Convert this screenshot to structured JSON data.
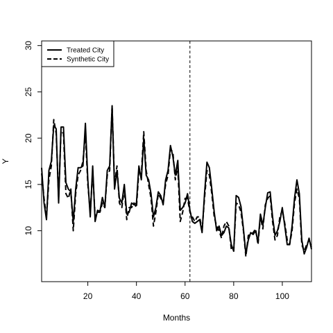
{
  "chart_data": {
    "type": "line",
    "xlabel": "Months",
    "ylabel": "Y",
    "xlim": [
      1,
      112
    ],
    "ylim": [
      4.5,
      30.5
    ],
    "xticks": [
      20,
      40,
      60,
      80,
      100
    ],
    "yticks": [
      10,
      15,
      20,
      25,
      30
    ],
    "intervention_x": 62,
    "legend_position": "top-left",
    "grid": false,
    "series": [
      {
        "name": "Treated City",
        "line_style": "solid",
        "color": "#000000",
        "x": [
          1,
          2,
          3,
          4,
          5,
          6,
          7,
          8,
          9,
          10,
          11,
          12,
          13,
          14,
          15,
          16,
          17,
          18,
          19,
          20,
          21,
          22,
          23,
          24,
          25,
          26,
          27,
          28,
          29,
          30,
          31,
          32,
          33,
          34,
          35,
          36,
          37,
          38,
          39,
          40,
          41,
          42,
          43,
          44,
          45,
          46,
          47,
          48,
          49,
          50,
          51,
          52,
          53,
          54,
          55,
          56,
          57,
          58,
          59,
          60,
          61,
          62,
          63,
          64,
          65,
          66,
          67,
          68,
          69,
          70,
          71,
          72,
          73,
          74,
          75,
          76,
          77,
          78,
          79,
          80,
          81,
          82,
          83,
          84,
          85,
          86,
          87,
          88,
          89,
          90,
          91,
          92,
          93,
          94,
          95,
          96,
          97,
          98,
          99,
          100,
          101,
          102,
          103,
          104,
          105,
          106,
          107,
          108,
          109,
          110,
          111,
          112
        ],
        "values": [
          16.8,
          13,
          11.2,
          16.5,
          17.5,
          21.4,
          21,
          13,
          21.2,
          21.2,
          15.2,
          14.5,
          14.2,
          11,
          14.5,
          16.8,
          16.8,
          17,
          21.6,
          15.5,
          11.5,
          17,
          11,
          12.2,
          12.1,
          13.6,
          12.5,
          16.5,
          17,
          23.5,
          14.5,
          16.5,
          13.5,
          13,
          15,
          11.8,
          12,
          13,
          12.8,
          13,
          17,
          15.5,
          20,
          16,
          15.5,
          14,
          11.5,
          12.5,
          14.2,
          13.8,
          12.8,
          15.5,
          16.5,
          19.2,
          18,
          16,
          17.6,
          12.2,
          12.5,
          13,
          14,
          12.2,
          11,
          10.8,
          11,
          11.2,
          9.8,
          14,
          17.4,
          16.8,
          14.5,
          12,
          10,
          10.5,
          9.5,
          9.8,
          10.5,
          10.3,
          8.5,
          7.8,
          13.8,
          13.6,
          12.6,
          10.2,
          7.5,
          9,
          9.8,
          9.6,
          10,
          8.8,
          11.8,
          10.6,
          12.5,
          14.1,
          14.2,
          11.5,
          9.5,
          10,
          11,
          12.5,
          10.5,
          8.5,
          8.5,
          10.5,
          13.5,
          15.5,
          14,
          9,
          7.5,
          8.2,
          9.2,
          8
        ]
      },
      {
        "name": "Synthetic City",
        "line_style": "dashed",
        "color": "#000000",
        "x": [
          1,
          2,
          3,
          4,
          5,
          6,
          7,
          8,
          9,
          10,
          11,
          12,
          13,
          14,
          15,
          16,
          17,
          18,
          19,
          20,
          21,
          22,
          23,
          24,
          25,
          26,
          27,
          28,
          29,
          30,
          31,
          32,
          33,
          34,
          35,
          36,
          37,
          38,
          39,
          40,
          41,
          42,
          43,
          44,
          45,
          46,
          47,
          48,
          49,
          50,
          51,
          52,
          53,
          54,
          55,
          56,
          57,
          58,
          59,
          60,
          61,
          62,
          63,
          64,
          65,
          66,
          67,
          68,
          69,
          70,
          71,
          72,
          73,
          74,
          75,
          76,
          77,
          78,
          79,
          80,
          81,
          82,
          83,
          84,
          85,
          86,
          87,
          88,
          89,
          90,
          91,
          92,
          93,
          94,
          95,
          96,
          97,
          98,
          99,
          100,
          101,
          102,
          103,
          104,
          105,
          106,
          107,
          108,
          109,
          110,
          111,
          112
        ],
        "values": [
          16.2,
          13.5,
          11.5,
          15.5,
          17,
          22,
          20.5,
          13.5,
          20.8,
          20.5,
          14,
          13.5,
          14.5,
          10,
          14,
          16,
          16.5,
          17.5,
          20.5,
          15,
          12,
          16.5,
          11.5,
          12,
          12,
          13,
          12.5,
          16,
          16.5,
          23.5,
          15,
          17,
          13,
          12.5,
          14.5,
          11.2,
          12.5,
          12.5,
          13,
          12.5,
          16.5,
          16,
          20.7,
          16.5,
          15,
          13.5,
          10.5,
          12,
          14,
          13.5,
          13,
          15,
          16,
          18.8,
          18.5,
          15.5,
          16.8,
          11,
          12,
          13.5,
          13.5,
          12,
          11.5,
          11,
          11.5,
          11.5,
          10,
          13.5,
          16.5,
          16,
          14,
          11.5,
          10.5,
          10,
          9.2,
          10.5,
          11,
          10.5,
          8,
          7.8,
          13,
          12.8,
          12,
          10,
          7.2,
          9.5,
          9.6,
          9.8,
          10.2,
          8.5,
          11.5,
          10.2,
          12.8,
          13.5,
          13.8,
          11,
          9,
          9.5,
          11.5,
          12.2,
          10.8,
          9,
          8.5,
          10,
          13,
          14.5,
          13.5,
          8.5,
          7.8,
          8.5,
          9,
          8.2
        ]
      }
    ]
  }
}
